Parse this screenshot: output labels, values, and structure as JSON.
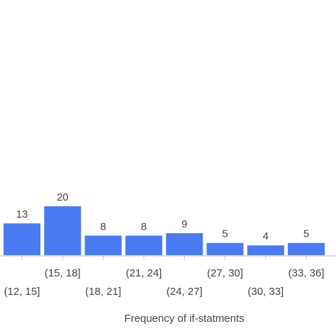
{
  "chart_data": {
    "type": "bar",
    "x_label": "Frequency of if-statments",
    "categories": [
      "(12, 15]",
      "(15, 18]",
      "(18, 21]",
      "(21, 24]",
      "(24, 27]",
      "(27, 30]",
      "(30, 33]",
      "(33, 36]"
    ],
    "values": [
      13,
      20,
      8,
      8,
      9,
      5,
      4,
      5
    ],
    "color": "#4a7bf2",
    "ylim": [
      0,
      20
    ]
  }
}
